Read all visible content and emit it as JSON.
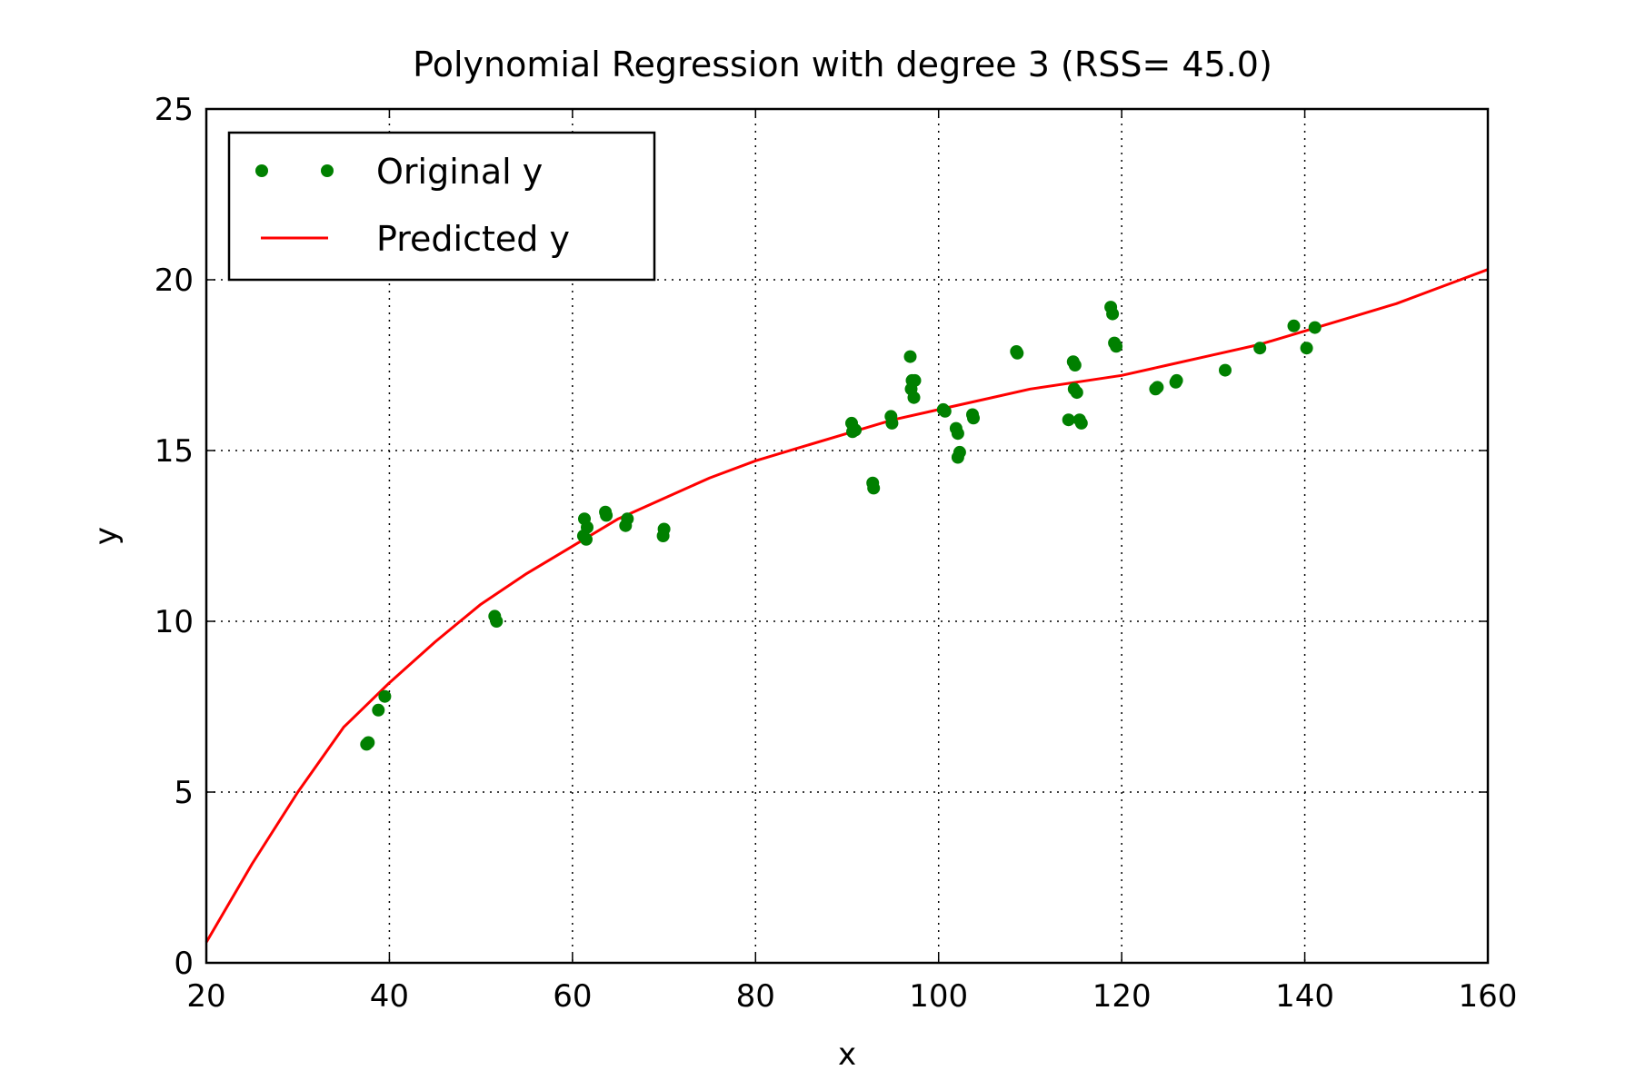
{
  "chart_data": {
    "type": "scatter",
    "title": "Polynomial Regression with degree 3 (RSS= 45.0)",
    "xlabel": "x",
    "ylabel": "y",
    "xlim": [
      20,
      160
    ],
    "ylim": [
      0,
      25
    ],
    "xticks": [
      20,
      40,
      60,
      80,
      100,
      120,
      140,
      160
    ],
    "yticks": [
      0,
      5,
      10,
      15,
      20,
      25
    ],
    "grid": true,
    "legend_position": "top-left",
    "series": [
      {
        "name": "Original y",
        "kind": "points",
        "color": "#008000",
        "points": [
          [
            37.5,
            6.4
          ],
          [
            37.7,
            6.45
          ],
          [
            38.8,
            7.4
          ],
          [
            39.5,
            7.8
          ],
          [
            51.5,
            10.15
          ],
          [
            51.7,
            10.0
          ],
          [
            61.2,
            12.5
          ],
          [
            61.3,
            13.0
          ],
          [
            61.5,
            12.4
          ],
          [
            61.6,
            12.75
          ],
          [
            63.6,
            13.2
          ],
          [
            63.7,
            13.1
          ],
          [
            65.8,
            12.8
          ],
          [
            66.0,
            13.0
          ],
          [
            69.9,
            12.5
          ],
          [
            70.0,
            12.7
          ],
          [
            90.5,
            15.8
          ],
          [
            90.6,
            15.55
          ],
          [
            90.9,
            15.6
          ],
          [
            92.8,
            14.05
          ],
          [
            92.9,
            13.9
          ],
          [
            94.8,
            16.0
          ],
          [
            94.9,
            15.8
          ],
          [
            96.9,
            17.75
          ],
          [
            97.0,
            16.8
          ],
          [
            97.1,
            17.05
          ],
          [
            97.3,
            16.55
          ],
          [
            97.4,
            17.05
          ],
          [
            100.5,
            16.2
          ],
          [
            100.7,
            16.15
          ],
          [
            101.9,
            15.65
          ],
          [
            102.1,
            15.5
          ],
          [
            102.1,
            14.8
          ],
          [
            102.3,
            14.95
          ],
          [
            103.7,
            16.05
          ],
          [
            103.8,
            15.95
          ],
          [
            108.5,
            17.9
          ],
          [
            108.6,
            17.85
          ],
          [
            114.2,
            15.9
          ],
          [
            114.7,
            17.6
          ],
          [
            114.8,
            16.8
          ],
          [
            114.9,
            17.5
          ],
          [
            115.1,
            16.7
          ],
          [
            115.4,
            15.9
          ],
          [
            115.6,
            15.8
          ],
          [
            118.8,
            19.2
          ],
          [
            119.0,
            19.0
          ],
          [
            119.2,
            18.15
          ],
          [
            119.4,
            18.05
          ],
          [
            123.7,
            16.8
          ],
          [
            123.9,
            16.85
          ],
          [
            125.9,
            17.0
          ],
          [
            126.0,
            17.05
          ],
          [
            131.3,
            17.35
          ],
          [
            135.1,
            18.0
          ],
          [
            138.8,
            18.65
          ],
          [
            140.2,
            18.0
          ],
          [
            141.1,
            18.6
          ]
        ]
      },
      {
        "name": "Predicted y",
        "kind": "line",
        "color": "#ff0000",
        "points": [
          [
            20,
            0.6
          ],
          [
            25,
            2.9
          ],
          [
            30,
            5.0
          ],
          [
            35,
            6.9
          ],
          [
            40,
            8.2
          ],
          [
            45,
            9.4
          ],
          [
            50,
            10.5
          ],
          [
            55,
            11.4
          ],
          [
            60,
            12.2
          ],
          [
            65,
            13.0
          ],
          [
            70,
            13.6
          ],
          [
            75,
            14.2
          ],
          [
            80,
            14.7
          ],
          [
            85,
            15.1
          ],
          [
            90,
            15.5
          ],
          [
            95,
            15.9
          ],
          [
            100,
            16.2
          ],
          [
            105,
            16.5
          ],
          [
            110,
            16.8
          ],
          [
            115,
            17.0
          ],
          [
            120,
            17.2
          ],
          [
            125,
            17.5
          ],
          [
            130,
            17.8
          ],
          [
            135,
            18.1
          ],
          [
            140,
            18.5
          ],
          [
            145,
            18.9
          ],
          [
            150,
            19.3
          ],
          [
            155,
            19.8
          ],
          [
            160,
            20.3
          ]
        ]
      }
    ]
  }
}
